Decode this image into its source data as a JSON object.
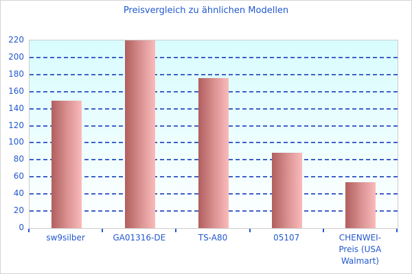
{
  "title": "Preisvergleich zu ähnlichen Modellen",
  "colors": {
    "text_blue": "#2158cd",
    "gridline_blue": "#3b5fc6",
    "bar_gradient_left": "#b15e5e",
    "bar_gradient_mid": "#d88f8f",
    "bar_gradient_right": "#fabbbb",
    "plot_bg_top": "#d8fcfd",
    "plot_bg_bottom": "#ffffff",
    "plot_border": "#cccccc",
    "outer_border": "#d3d3d3"
  },
  "chart_data": {
    "type": "bar",
    "title": "Preisvergleich zu ähnlichen Modellen",
    "categories": [
      "sw9silber",
      "GA01316-DE",
      "TS-A80",
      "05107",
      "CHENWEI-\nPreis (USA Walmart)"
    ],
    "values": [
      149,
      220,
      176,
      88,
      54
    ],
    "xlabel": "",
    "ylabel": "",
    "ylim": [
      0,
      220
    ],
    "ytick_step": 20,
    "yticks": [
      0,
      20,
      40,
      60,
      80,
      100,
      120,
      140,
      160,
      180,
      200,
      220
    ],
    "grid": "horizontal-dashed",
    "legend_position": "none"
  }
}
